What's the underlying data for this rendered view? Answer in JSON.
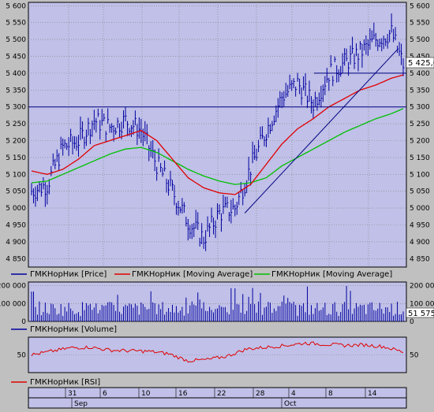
{
  "price_panel": {
    "y_ticks": [
      "4 850",
      "4 900",
      "4 950",
      "5 000",
      "5 050",
      "5 100",
      "5 150",
      "5 200",
      "5 250",
      "5 300",
      "5 350",
      "5 400",
      "5 450",
      "5 500",
      "5 550",
      "5 600"
    ],
    "last_value_label": "5 425,0",
    "legend": [
      {
        "label": "ГМКНорНик [Price]",
        "color": "#0000a0"
      },
      {
        "label": "ГМКНорНик [Moving Average]",
        "color": "#e00000"
      },
      {
        "label": "ГМКНорНик [Moving Average]",
        "color": "#00c000"
      }
    ]
  },
  "volume_panel": {
    "y_ticks": [
      "0",
      "100 000",
      "200 000"
    ],
    "last_value_label": "51 575",
    "legend": {
      "label": "ГМКНорНик [Volume]",
      "color": "#0000a0"
    }
  },
  "rsi_panel": {
    "y_ticks": [
      "50"
    ],
    "legend": {
      "label": "ГМКНорНик [RSI]",
      "color": "#e00000"
    }
  },
  "date_axis": {
    "day_labels": [
      "31",
      "6",
      "10",
      "16",
      "22",
      "28",
      "4",
      "8",
      "14"
    ],
    "month_labels": [
      "Sep",
      "Oct"
    ]
  },
  "colors": {
    "plot_bg": "#c0c0e8",
    "price": "#0000a0",
    "ma_fast": "#e00000",
    "ma_slow": "#00c000",
    "grid": "#808080",
    "lines": "#000080"
  },
  "chart_data": [
    {
      "type": "line",
      "title": "",
      "ylabel": "",
      "ylim": [
        4825,
        5610
      ],
      "x_range": [
        0,
        190
      ],
      "series": [
        {
          "name": "ГМКНорНик [Price]",
          "style": "bars",
          "x": [
            0,
            8,
            16,
            24,
            32,
            40,
            48,
            56,
            64,
            72,
            80,
            88,
            96,
            104,
            112,
            120,
            128,
            136,
            144,
            152,
            160,
            168,
            176,
            184,
            190
          ],
          "values": [
            5050,
            5070,
            5180,
            5200,
            5260,
            5240,
            5260,
            5230,
            5130,
            5050,
            4960,
            4910,
            4985,
            5000,
            5120,
            5230,
            5330,
            5370,
            5310,
            5400,
            5430,
            5460,
            5500,
            5520,
            5425
          ]
        },
        {
          "name": "ГМКНорНик [Moving Average]",
          "x": [
            0,
            8,
            16,
            24,
            32,
            40,
            48,
            56,
            64,
            72,
            80,
            88,
            96,
            104,
            112,
            120,
            128,
            136,
            144,
            152,
            160,
            168,
            176,
            184,
            190
          ],
          "values": [
            5110,
            5100,
            5115,
            5145,
            5185,
            5200,
            5215,
            5230,
            5200,
            5145,
            5090,
            5060,
            5045,
            5040,
            5070,
            5130,
            5190,
            5235,
            5265,
            5300,
            5325,
            5350,
            5365,
            5385,
            5395
          ]
        },
        {
          "name": "ГМКНорНик [Moving Average]",
          "x": [
            0,
            8,
            16,
            24,
            32,
            40,
            48,
            56,
            64,
            72,
            80,
            88,
            96,
            104,
            112,
            120,
            128,
            136,
            144,
            152,
            160,
            168,
            176,
            184,
            190
          ],
          "values": [
            5075,
            5080,
            5100,
            5120,
            5140,
            5160,
            5175,
            5180,
            5165,
            5140,
            5115,
            5095,
            5080,
            5070,
            5075,
            5090,
            5125,
            5150,
            5175,
            5200,
            5225,
            5245,
            5265,
            5280,
            5295
          ]
        }
      ],
      "horizontal_lines": [
        5300,
        5400
      ],
      "trend_line": {
        "from": [
          109,
          4985
        ],
        "to": [
          187,
          5470
        ]
      }
    },
    {
      "type": "bar",
      "ylim": [
        0,
        220000
      ],
      "series": [
        {
          "name": "ГМКНорНик [Volume]",
          "baseline": 80000,
          "range": [
            30000,
            200000
          ]
        }
      ]
    },
    {
      "type": "line",
      "ylim": [
        20,
        80
      ],
      "series": [
        {
          "name": "ГМКНорНик [RSI]",
          "x": [
            0,
            10,
            20,
            30,
            40,
            50,
            60,
            70,
            80,
            90,
            100,
            110,
            120,
            130,
            140,
            150,
            160,
            170,
            180,
            190
          ],
          "values": [
            50,
            56,
            62,
            63,
            58,
            57,
            56,
            52,
            40,
            42,
            48,
            60,
            63,
            66,
            70,
            68,
            66,
            67,
            64,
            55
          ]
        }
      ]
    }
  ]
}
